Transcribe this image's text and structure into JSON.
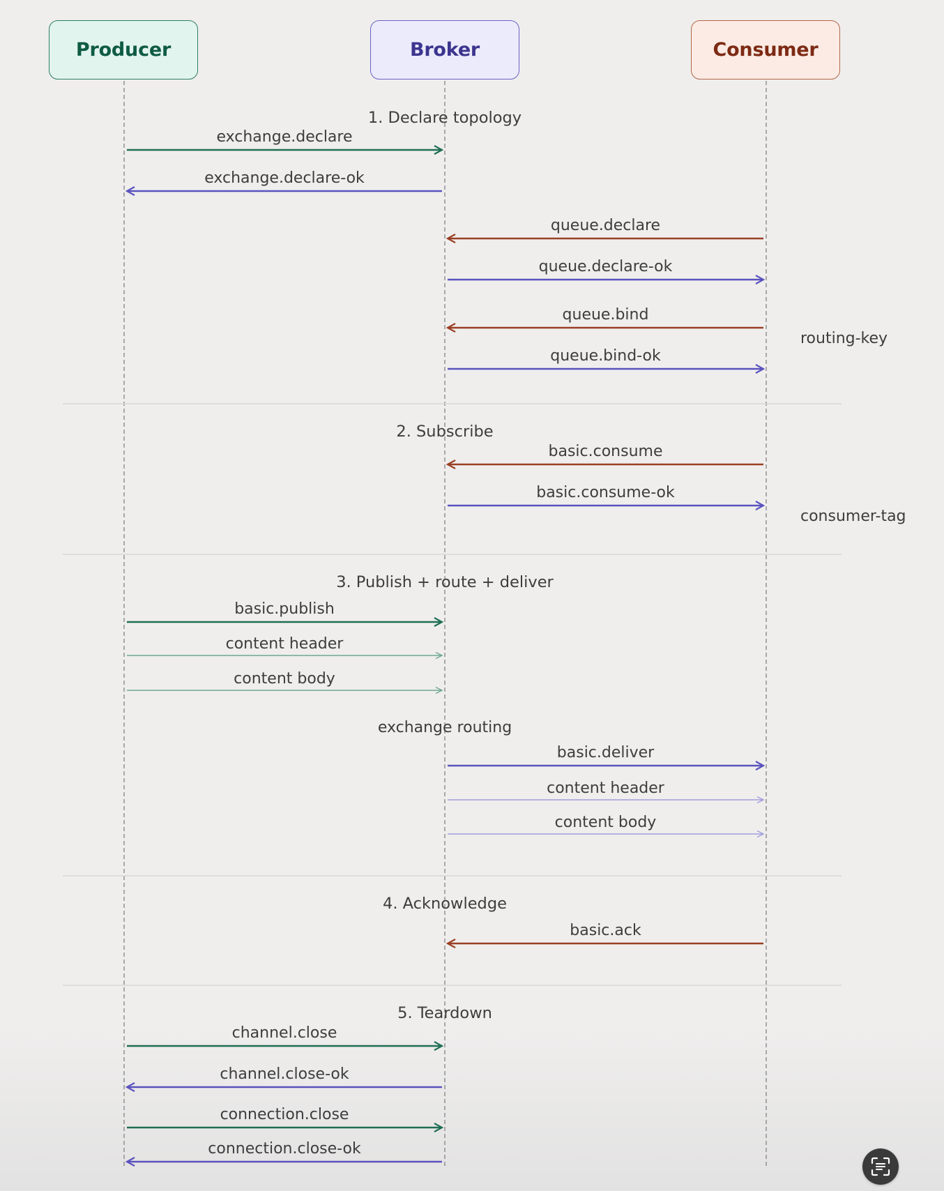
{
  "colors": {
    "producer": "#1f6e55",
    "broker": "#5a52be",
    "consumer": "#9a3f24",
    "producer_light": "#6fa694",
    "broker_light": "#a29ddc",
    "lifeline": "#8a8a8a",
    "divider": "#d8d7d6",
    "text": "#3d3d3d"
  },
  "participants": [
    {
      "id": "producer",
      "label": "Producer",
      "text_color": "#0f5b44"
    },
    {
      "id": "broker",
      "label": "Broker",
      "text_color": "#3c358f"
    },
    {
      "id": "consumer",
      "label": "Consumer",
      "text_color": "#7d2a14"
    }
  ],
  "sections": [
    {
      "title": "1. Declare topology",
      "messages": [
        {
          "label": "exchange.declare",
          "from": "producer",
          "to": "broker",
          "style": "solid"
        },
        {
          "label": "exchange.declare-ok",
          "from": "broker",
          "to": "producer",
          "style": "solid"
        },
        {
          "label": "queue.declare",
          "from": "consumer",
          "to": "broker",
          "style": "solid"
        },
        {
          "label": "queue.declare-ok",
          "from": "broker",
          "to": "consumer",
          "style": "solid"
        },
        {
          "label": "queue.bind",
          "from": "consumer",
          "to": "broker",
          "style": "solid"
        },
        {
          "label": "queue.bind-ok",
          "from": "broker",
          "to": "consumer",
          "style": "solid"
        }
      ],
      "note": "routing-key"
    },
    {
      "title": "2. Subscribe",
      "messages": [
        {
          "label": "basic.consume",
          "from": "consumer",
          "to": "broker",
          "style": "solid"
        },
        {
          "label": "basic.consume-ok",
          "from": "broker",
          "to": "consumer",
          "style": "solid"
        }
      ],
      "note": "consumer-tag"
    },
    {
      "title": "3. Publish + route + deliver",
      "messages": [
        {
          "label": "basic.publish",
          "from": "producer",
          "to": "broker",
          "style": "solid"
        },
        {
          "label": "content header",
          "from": "producer",
          "to": "broker",
          "style": "thin"
        },
        {
          "label": "content body",
          "from": "producer",
          "to": "broker",
          "style": "thin"
        },
        {
          "label": "basic.deliver",
          "from": "broker",
          "to": "consumer",
          "style": "solid"
        },
        {
          "label": "content header",
          "from": "broker",
          "to": "consumer",
          "style": "thin"
        },
        {
          "label": "content body",
          "from": "broker",
          "to": "consumer",
          "style": "thin"
        }
      ],
      "note": "exchange routing"
    },
    {
      "title": "4. Acknowledge",
      "messages": [
        {
          "label": "basic.ack",
          "from": "consumer",
          "to": "broker",
          "style": "solid"
        }
      ]
    },
    {
      "title": "5. Teardown",
      "messages": [
        {
          "label": "channel.close",
          "from": "producer",
          "to": "broker",
          "style": "solid"
        },
        {
          "label": "channel.close-ok",
          "from": "broker",
          "to": "producer",
          "style": "solid"
        },
        {
          "label": "connection.close",
          "from": "producer",
          "to": "broker",
          "style": "solid"
        },
        {
          "label": "connection.close-ok",
          "from": "broker",
          "to": "producer",
          "style": "solid"
        }
      ]
    }
  ],
  "fab_icon": "text-scan-icon"
}
